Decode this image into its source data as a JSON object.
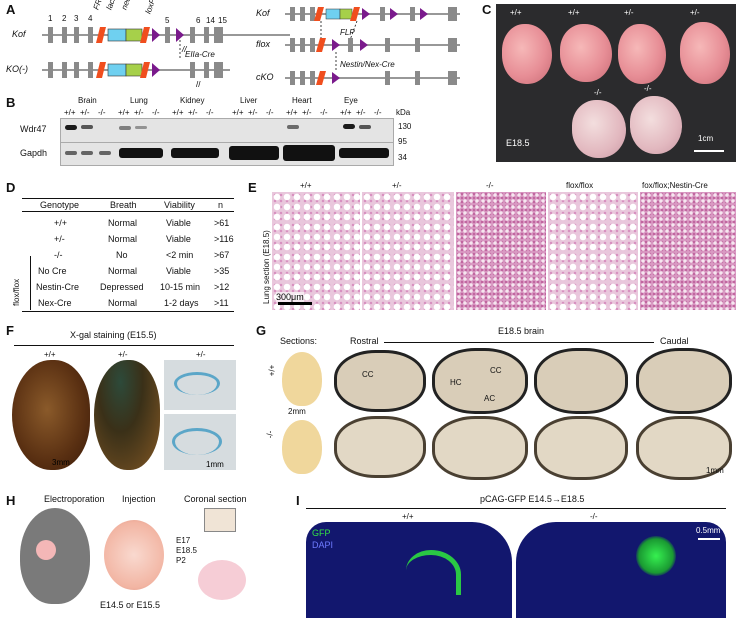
{
  "panelA": {
    "label": "A",
    "kof": "Kof",
    "ko": "KO(-)",
    "flox": "flox",
    "cko": "cKO",
    "exon_nums": [
      "1",
      "2",
      "3",
      "4",
      "5",
      "6",
      "14",
      "15"
    ],
    "frt": "FRT",
    "lacz": "lacZ",
    "neo": "neo",
    "loxp": "loxP",
    "ella": "EIIa-Cre",
    "flp": "FLP",
    "nestin": "Nestin/Nex-Cre",
    "colors": {
      "frt": "#f04e1e",
      "lacz": "#6fd0f0",
      "neo": "#a6d04a",
      "loxp": "#7a1a8c",
      "exon": "#8a8a8a"
    }
  },
  "panelB": {
    "label": "B",
    "tissues": [
      "Brain",
      "Lung",
      "Kidney",
      "Liver",
      "Heart",
      "Eye"
    ],
    "genotypes": [
      "+/+",
      "+/-",
      "-/-"
    ],
    "rows": [
      "Wdr47",
      "Gapdh"
    ],
    "kda": "kDa",
    "markers": [
      "130",
      "95",
      "34"
    ]
  },
  "panelC": {
    "label": "C",
    "top": [
      "+/+",
      "+/+",
      "+/-",
      "+/-"
    ],
    "bottom": [
      "-/-",
      "-/-"
    ],
    "stage": "E18.5",
    "scale": "1cm"
  },
  "panelD": {
    "label": "D",
    "headers": [
      "Genotype",
      "Breath",
      "Viability",
      "n"
    ],
    "rows": [
      [
        "+/+",
        "Normal",
        "Viable",
        ">61"
      ],
      [
        "+/-",
        "Normal",
        "Viable",
        ">116"
      ],
      [
        "-/-",
        "No",
        "<2 min",
        ">67"
      ],
      [
        "No Cre",
        "Normal",
        "Viable",
        ">35"
      ],
      [
        "Nestin-Cre",
        "Depressed",
        "10-15 min",
        ">12"
      ],
      [
        "Nex-Cre",
        "Normal",
        "1-2 days",
        ">11"
      ]
    ],
    "group": "flox/flox"
  },
  "panelE": {
    "label": "E",
    "cols": [
      "+/+",
      "+/-",
      "-/-",
      "flox/flox",
      "fox/flox;Nestin-Cre"
    ],
    "side": "Lung section (E18.5)",
    "scale": "300μm"
  },
  "panelF": {
    "label": "F",
    "title": "X-gal staining (E15.5)",
    "cols": [
      "+/+",
      "+/-",
      "+/-"
    ],
    "scale1": "3mm",
    "scale2": "1mm"
  },
  "panelG": {
    "label": "G",
    "sections": "Sections:",
    "rostral": "Rostral",
    "title": "E18.5 brain",
    "caudal": "Caudal",
    "rows": [
      "+/+",
      "-/-"
    ],
    "scale1": "2mm",
    "scale2": "1mm",
    "cc": "CC",
    "hc": "HC",
    "ac": "AC"
  },
  "panelH": {
    "label": "H",
    "electro": "Electroporation",
    "injection": "Injection",
    "coronal": "Coronal section",
    "timepoints": [
      "E17",
      "E18.5",
      "P2"
    ],
    "stage": "E14.5 or E15.5"
  },
  "panelI": {
    "label": "I",
    "title": "pCAG-GFP  E14.5→E18.5",
    "cols": [
      "+/+",
      "-/-"
    ],
    "gfp": "GFP",
    "dapi": "DAPI",
    "scale": "0.5mm"
  }
}
